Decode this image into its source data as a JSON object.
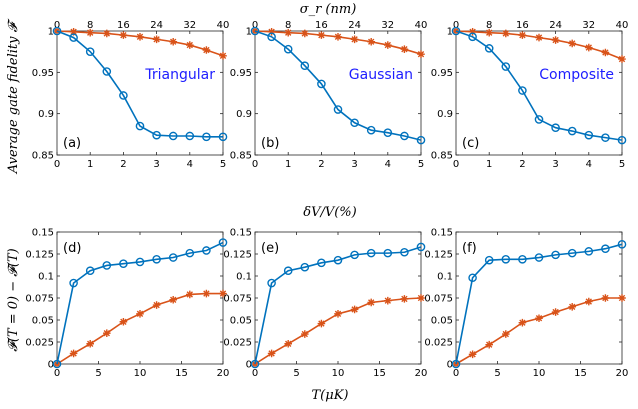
{
  "figure": {
    "ylabel_top": "Average gate fidelity 𝓕",
    "ylabel_bottom": "𝓕(T = 0) − 𝓕(T)",
    "xlabel_top_axis": "σ_r (nm)",
    "xlabel_mid": "δV/V(%)",
    "xlabel_bottom": "T(μK)",
    "colors": {
      "blue": "#0072BD",
      "orange": "#D95319"
    }
  },
  "chart_data": [
    {
      "type": "line",
      "panel": "(a)",
      "name": "Triangular",
      "xlim": [
        0,
        5
      ],
      "ylim": [
        0.85,
        1.0
      ],
      "xticks": [
        "0",
        "1",
        "2",
        "3",
        "4",
        "5"
      ],
      "yticks": [
        "0.85",
        "0.9",
        "0.95",
        "1"
      ],
      "top_axis": {
        "label": "σ_r (nm)",
        "range": [
          0,
          40
        ],
        "ticks": [
          "0",
          "8",
          "16",
          "24",
          "32",
          "40"
        ]
      },
      "x": [
        0,
        0.5,
        1,
        1.5,
        2,
        2.5,
        3,
        3.5,
        4,
        4.5,
        5
      ],
      "series": [
        {
          "name": "δV/V (circles)",
          "marker": "circle",
          "color": "#0072BD",
          "values": [
            1.0,
            0.992,
            0.975,
            0.951,
            0.922,
            0.885,
            0.874,
            0.873,
            0.873,
            0.872,
            0.872
          ]
        },
        {
          "name": "σ_r (stars)",
          "marker": "star",
          "color": "#D95319",
          "values": [
            1.0,
            0.999,
            0.998,
            0.997,
            0.995,
            0.993,
            0.99,
            0.987,
            0.983,
            0.977,
            0.97
          ]
        }
      ]
    },
    {
      "type": "line",
      "panel": "(b)",
      "name": "Gaussian",
      "xlim": [
        0,
        5
      ],
      "ylim": [
        0.85,
        1.0
      ],
      "xticks": [
        "0",
        "1",
        "2",
        "3",
        "4",
        "5"
      ],
      "yticks": [
        "0.85",
        "0.9",
        "0.95",
        "1"
      ],
      "top_axis": {
        "label": "σ_r (nm)",
        "range": [
          0,
          40
        ],
        "ticks": [
          "0",
          "8",
          "16",
          "24",
          "32",
          "40"
        ]
      },
      "x": [
        0,
        0.5,
        1,
        1.5,
        2,
        2.5,
        3,
        3.5,
        4,
        4.5,
        5
      ],
      "series": [
        {
          "name": "δV/V (circles)",
          "marker": "circle",
          "color": "#0072BD",
          "values": [
            1.0,
            0.993,
            0.978,
            0.958,
            0.936,
            0.905,
            0.889,
            0.88,
            0.877,
            0.873,
            0.868
          ]
        },
        {
          "name": "σ_r (stars)",
          "marker": "star",
          "color": "#D95319",
          "values": [
            1.0,
            0.999,
            0.998,
            0.997,
            0.995,
            0.993,
            0.99,
            0.987,
            0.983,
            0.978,
            0.972
          ]
        }
      ]
    },
    {
      "type": "line",
      "panel": "(c)",
      "name": "Composite",
      "xlim": [
        0,
        5
      ],
      "ylim": [
        0.85,
        1.0
      ],
      "xticks": [
        "0",
        "1",
        "2",
        "3",
        "4",
        "5"
      ],
      "yticks": [
        "0.85",
        "0.9",
        "0.95",
        "1"
      ],
      "top_axis": {
        "label": "σ_r (nm)",
        "range": [
          0,
          40
        ],
        "ticks": [
          "0",
          "8",
          "16",
          "24",
          "32",
          "40"
        ]
      },
      "x": [
        0,
        0.5,
        1,
        1.5,
        2,
        2.5,
        3,
        3.5,
        4,
        4.5,
        5
      ],
      "series": [
        {
          "name": "δV/V (circles)",
          "marker": "circle",
          "color": "#0072BD",
          "values": [
            1.0,
            0.993,
            0.979,
            0.957,
            0.928,
            0.893,
            0.883,
            0.879,
            0.874,
            0.871,
            0.868
          ]
        },
        {
          "name": "σ_r (stars)",
          "marker": "star",
          "color": "#D95319",
          "values": [
            1.0,
            0.999,
            0.998,
            0.997,
            0.995,
            0.992,
            0.989,
            0.985,
            0.98,
            0.974,
            0.966
          ]
        }
      ]
    },
    {
      "type": "line",
      "panel": "(d)",
      "xlim": [
        0,
        20
      ],
      "ylim": [
        0,
        0.15
      ],
      "xticks": [
        "0",
        "5",
        "10",
        "15",
        "20"
      ],
      "yticks": [
        "0",
        "0.025",
        "0.05",
        "0.075",
        "0.1",
        "0.125",
        "0.15"
      ],
      "x": [
        0,
        2,
        4,
        6,
        8,
        10,
        12,
        14,
        16,
        18,
        20
      ],
      "series": [
        {
          "name": "circles",
          "marker": "circle",
          "color": "#0072BD",
          "values": [
            0,
            0.092,
            0.106,
            0.112,
            0.114,
            0.116,
            0.119,
            0.121,
            0.126,
            0.129,
            0.138
          ]
        },
        {
          "name": "stars",
          "marker": "star",
          "color": "#D95319",
          "values": [
            0,
            0.012,
            0.023,
            0.035,
            0.048,
            0.057,
            0.067,
            0.073,
            0.079,
            0.08,
            0.08
          ]
        }
      ]
    },
    {
      "type": "line",
      "panel": "(e)",
      "xlim": [
        0,
        20
      ],
      "ylim": [
        0,
        0.15
      ],
      "xticks": [
        "0",
        "5",
        "10",
        "15",
        "20"
      ],
      "yticks": [
        "0",
        "0.025",
        "0.05",
        "0.075",
        "0.1",
        "0.125",
        "0.15"
      ],
      "x": [
        0,
        2,
        4,
        6,
        8,
        10,
        12,
        14,
        16,
        18,
        20
      ],
      "series": [
        {
          "name": "circles",
          "marker": "circle",
          "color": "#0072BD",
          "values": [
            0,
            0.092,
            0.106,
            0.11,
            0.115,
            0.118,
            0.124,
            0.126,
            0.126,
            0.127,
            0.133
          ]
        },
        {
          "name": "stars",
          "marker": "star",
          "color": "#D95319",
          "values": [
            0,
            0.012,
            0.023,
            0.034,
            0.046,
            0.057,
            0.062,
            0.07,
            0.072,
            0.074,
            0.075
          ]
        }
      ]
    },
    {
      "type": "line",
      "panel": "(f)",
      "xlim": [
        0,
        20
      ],
      "ylim": [
        0,
        0.15
      ],
      "xticks": [
        "0",
        "5",
        "10",
        "15",
        "20"
      ],
      "yticks": [
        "0",
        "0.025",
        "0.05",
        "0.075",
        "0.1",
        "0.125",
        "0.15"
      ],
      "x": [
        0,
        2,
        4,
        6,
        8,
        10,
        12,
        14,
        16,
        18,
        20
      ],
      "series": [
        {
          "name": "circles",
          "marker": "circle",
          "color": "#0072BD",
          "values": [
            0,
            0.098,
            0.118,
            0.119,
            0.119,
            0.121,
            0.124,
            0.126,
            0.128,
            0.131,
            0.136
          ]
        },
        {
          "name": "stars",
          "marker": "star",
          "color": "#D95319",
          "values": [
            0,
            0.011,
            0.022,
            0.034,
            0.047,
            0.052,
            0.059,
            0.065,
            0.071,
            0.075,
            0.075
          ]
        }
      ]
    }
  ]
}
